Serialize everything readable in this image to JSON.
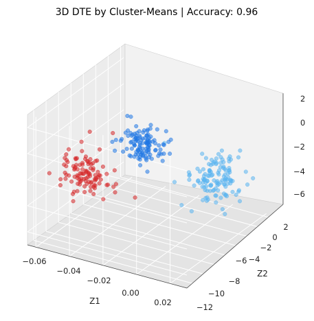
{
  "chart_data": {
    "type": "scatter",
    "title": "3D DTE by Cluster-Means  |  Accuracy: 0.96",
    "xlabel": "Z1",
    "ylabel": "Z2",
    "zlabel": "",
    "x_ticks": [
      "−0.06",
      "−0.04",
      "−0.02",
      "0.00",
      "0.02"
    ],
    "y_ticks": [
      "−12",
      "−10",
      "−8",
      "−6",
      "−4",
      "−2",
      "0",
      "2"
    ],
    "z_ticks": [
      "−6",
      "−4",
      "−2",
      "0",
      "2"
    ],
    "xlim": [
      -0.065,
      0.03
    ],
    "ylim": [
      -12.5,
      3
    ],
    "zlim": [
      -7,
      3
    ],
    "grid": true,
    "colors": {
      "red": "#d62728",
      "blue": "#1f77e4",
      "light_blue": "#5ab4f0"
    },
    "series": [
      {
        "color": "#d62728",
        "center": [
          -0.038,
          1.0,
          -1.2
        ],
        "spread": [
          0.008,
          1.0,
          0.9
        ],
        "count": 110
      },
      {
        "color": "#1f77e4",
        "center": [
          -0.002,
          1.5,
          2.4
        ],
        "spread": [
          0.006,
          0.7,
          0.6
        ],
        "count": 120
      },
      {
        "color": "#5ab4f0",
        "center": [
          0.005,
          -8.5,
          -3.4
        ],
        "spread": [
          0.008,
          1.2,
          0.9
        ],
        "count": 130
      }
    ]
  }
}
